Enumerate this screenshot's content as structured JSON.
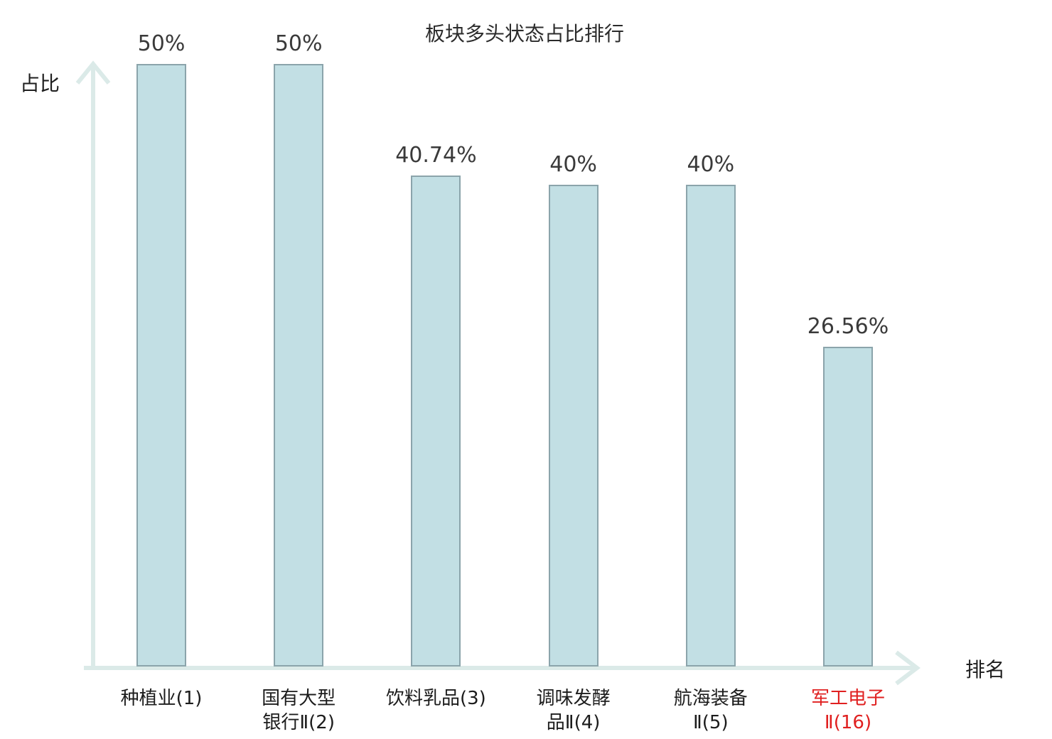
{
  "page": {
    "background": "#ffffff"
  },
  "chart_data": {
    "type": "bar",
    "title": "板块多头状态占比排行",
    "ylabel": "占比",
    "xlabel": "排名",
    "categories": [
      "种植业(1)",
      "国有大型银行Ⅱ(2)",
      "饮料乳品(3)",
      "调味发酵品Ⅱ(4)",
      "航海装备Ⅱ(5)",
      "军工电子Ⅱ(16)"
    ],
    "category_lines": [
      [
        "种植业(1)"
      ],
      [
        "国有大型",
        "银行Ⅱ(2)"
      ],
      [
        "饮料乳品(3)"
      ],
      [
        "调味发酵",
        "品Ⅱ(4)"
      ],
      [
        "航海装备",
        "Ⅱ(5)"
      ],
      [
        "军工电子",
        "Ⅱ(16)"
      ]
    ],
    "values": [
      50,
      50,
      40.74,
      40,
      40,
      26.56
    ],
    "value_labels": [
      "50%",
      "50%",
      "40.74%",
      "40%",
      "40%",
      "26.56%"
    ],
    "highlight_index": 5,
    "ylim": [
      0,
      50
    ],
    "grid": false,
    "legend_position": "none",
    "colors": {
      "bar_fill": "#c2dfe4",
      "bar_border": "#8ba4ab",
      "axis": "#dbeae8",
      "text": "#3a3a3a",
      "category_text": "#1c1c1c",
      "highlight": "#e02020"
    }
  }
}
